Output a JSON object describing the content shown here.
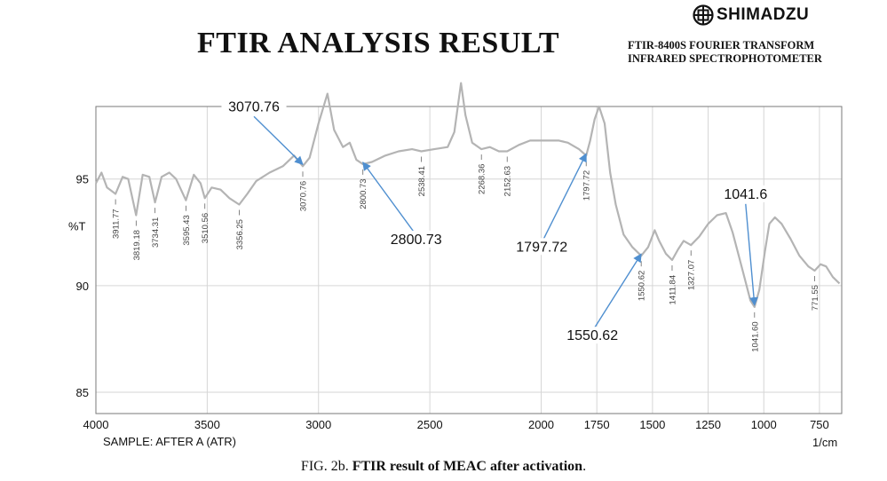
{
  "header": {
    "brand_name": "SHIMADZU",
    "title": "FTIR ANALYSIS RESULT",
    "instrument_line1": "FTIR-8400S FOURIER TRANSFORM",
    "instrument_line2": "INFRARED SPECTROPHOTOMETER"
  },
  "footer": {
    "sample_label": "SAMPLE: AFTER A (ATR)",
    "unit_label": "1/cm",
    "caption_prefix": "FIG. 2b.",
    "caption_bold": "FTIR result of MEAC after activation",
    "caption_suffix": "."
  },
  "colors": {
    "spectrum": "#b4b4b4",
    "arrow": "#4f8fd0",
    "grid": "#d6d6d6",
    "frame": "#7a7a7a"
  },
  "icons": {
    "brand_logo": "shimadzu-logo-icon"
  },
  "chart_data": {
    "type": "line",
    "title": "FTIR ANALYSIS RESULT",
    "xlabel": "1/cm",
    "ylabel": "%T",
    "xlim": [
      4000,
      650
    ],
    "ylim": [
      84,
      98.4
    ],
    "x_reversed": true,
    "grid": true,
    "x_ticks": [
      4000,
      3500,
      3000,
      2500,
      2000,
      1750,
      1500,
      1250,
      1000,
      750
    ],
    "y_ticks": [
      95,
      90,
      85
    ],
    "y_tick_labels": [
      "95",
      "90",
      "85"
    ],
    "series": [
      {
        "points": [
          [
            4000,
            94.8
          ],
          [
            3975,
            95.3
          ],
          [
            3950,
            94.6
          ],
          [
            3911.77,
            94.3
          ],
          [
            3880,
            95.1
          ],
          [
            3855,
            95.0
          ],
          [
            3819.18,
            93.3
          ],
          [
            3790,
            95.2
          ],
          [
            3760,
            95.1
          ],
          [
            3734.31,
            93.9
          ],
          [
            3705,
            95.1
          ],
          [
            3670,
            95.3
          ],
          [
            3640,
            95.0
          ],
          [
            3595.43,
            94.0
          ],
          [
            3560,
            95.2
          ],
          [
            3530,
            94.8
          ],
          [
            3510.56,
            94.1
          ],
          [
            3480,
            94.6
          ],
          [
            3440,
            94.5
          ],
          [
            3400,
            94.1
          ],
          [
            3356.25,
            93.8
          ],
          [
            3320,
            94.3
          ],
          [
            3280,
            94.9
          ],
          [
            3220,
            95.3
          ],
          [
            3160,
            95.6
          ],
          [
            3110,
            96.1
          ],
          [
            3070.76,
            95.6
          ],
          [
            3040,
            96.0
          ],
          [
            3000,
            97.6
          ],
          [
            2960,
            99.0
          ],
          [
            2930,
            97.3
          ],
          [
            2890,
            96.5
          ],
          [
            2860,
            96.7
          ],
          [
            2830,
            95.9
          ],
          [
            2800.73,
            95.7
          ],
          [
            2760,
            95.8
          ],
          [
            2700,
            96.1
          ],
          [
            2640,
            96.3
          ],
          [
            2580,
            96.4
          ],
          [
            2538.41,
            96.3
          ],
          [
            2480,
            96.4
          ],
          [
            2420,
            96.5
          ],
          [
            2390,
            97.2
          ],
          [
            2360,
            99.5
          ],
          [
            2340,
            98.0
          ],
          [
            2310,
            96.7
          ],
          [
            2268.36,
            96.4
          ],
          [
            2230,
            96.5
          ],
          [
            2190,
            96.3
          ],
          [
            2152.63,
            96.3
          ],
          [
            2100,
            96.6
          ],
          [
            2050,
            96.8
          ],
          [
            1980,
            96.8
          ],
          [
            1920,
            96.8
          ],
          [
            1880,
            96.7
          ],
          [
            1830,
            96.4
          ],
          [
            1797.72,
            96.1
          ],
          [
            1780,
            96.8
          ],
          [
            1760,
            97.8
          ],
          [
            1740,
            98.4
          ],
          [
            1715,
            97.6
          ],
          [
            1690,
            95.3
          ],
          [
            1665,
            93.8
          ],
          [
            1630,
            92.4
          ],
          [
            1590,
            91.8
          ],
          [
            1550.62,
            91.4
          ],
          [
            1520,
            91.8
          ],
          [
            1490,
            92.6
          ],
          [
            1470,
            92.1
          ],
          [
            1440,
            91.5
          ],
          [
            1411.84,
            91.2
          ],
          [
            1385,
            91.7
          ],
          [
            1360,
            92.1
          ],
          [
            1327.07,
            91.9
          ],
          [
            1290,
            92.3
          ],
          [
            1250,
            92.9
          ],
          [
            1210,
            93.3
          ],
          [
            1170,
            93.4
          ],
          [
            1140,
            92.5
          ],
          [
            1110,
            91.3
          ],
          [
            1080,
            90.1
          ],
          [
            1060,
            89.3
          ],
          [
            1041.6,
            89.0
          ],
          [
            1020,
            89.8
          ],
          [
            995,
            91.6
          ],
          [
            975,
            92.9
          ],
          [
            950,
            93.2
          ],
          [
            920,
            92.9
          ],
          [
            880,
            92.2
          ],
          [
            840,
            91.4
          ],
          [
            800,
            90.9
          ],
          [
            771.55,
            90.7
          ],
          [
            745,
            91.0
          ],
          [
            720,
            90.9
          ],
          [
            690,
            90.4
          ],
          [
            660,
            90.1
          ]
        ]
      }
    ],
    "peak_labels": [
      {
        "x": 3911.77,
        "text": "3911.77"
      },
      {
        "x": 3819.18,
        "text": "3819.18"
      },
      {
        "x": 3734.31,
        "text": "3734.31"
      },
      {
        "x": 3595.43,
        "text": "3595.43"
      },
      {
        "x": 3510.56,
        "text": "3510.56"
      },
      {
        "x": 3356.25,
        "text": "3356.25"
      },
      {
        "x": 3070.76,
        "text": "3070.76"
      },
      {
        "x": 2800.73,
        "text": "2800.73"
      },
      {
        "x": 2538.41,
        "text": "2538.41"
      },
      {
        "x": 2268.36,
        "text": "2268.36"
      },
      {
        "x": 2152.63,
        "text": "2152.63"
      },
      {
        "x": 1797.72,
        "text": "1797.72"
      },
      {
        "x": 1550.62,
        "text": "1550.62"
      },
      {
        "x": 1411.84,
        "text": "1411.84"
      },
      {
        "x": 1327.07,
        "text": "1327.07"
      },
      {
        "x": 1041.6,
        "text": "1041.60"
      },
      {
        "x": 771.55,
        "text": "771.55"
      }
    ],
    "annotations": [
      {
        "text": "3070.76",
        "target_x": 3070.76
      },
      {
        "text": "2800.73",
        "target_x": 2800.73
      },
      {
        "text": "1797.72",
        "target_x": 1797.72
      },
      {
        "text": "1550.62",
        "target_x": 1550.62
      },
      {
        "text": "1041.6",
        "target_x": 1041.6
      }
    ]
  }
}
